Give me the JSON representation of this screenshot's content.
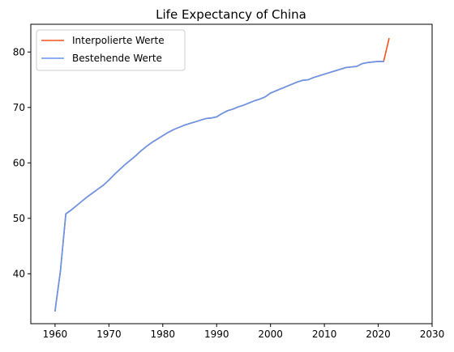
{
  "chart_data": {
    "type": "line",
    "title": "Life Expectancy of China",
    "xlabel": "",
    "ylabel": "",
    "xlim": [
      1955.5,
      2030
    ],
    "ylim": [
      31,
      85
    ],
    "xticks": [
      1960,
      1970,
      1980,
      1990,
      2000,
      2010,
      2020,
      2030
    ],
    "yticks": [
      40,
      50,
      60,
      70,
      80
    ],
    "legend_position": "top-left",
    "grid": false,
    "series": [
      {
        "name": "Interpolierte Werte",
        "color": "#f4511e",
        "x": [
          1960,
          1961,
          1962,
          1963,
          1964,
          1965,
          1966,
          1967,
          1968,
          1969,
          1970,
          1971,
          1972,
          1973,
          1974,
          1975,
          1976,
          1977,
          1978,
          1979,
          1980,
          1981,
          1982,
          1983,
          1984,
          1985,
          1986,
          1987,
          1988,
          1989,
          1990,
          1991,
          1992,
          1993,
          1994,
          1995,
          1996,
          1997,
          1998,
          1999,
          2000,
          2001,
          2002,
          2003,
          2004,
          2005,
          2006,
          2007,
          2008,
          2009,
          2010,
          2011,
          2012,
          2013,
          2014,
          2015,
          2016,
          2017,
          2018,
          2019,
          2020,
          2021,
          2022
        ],
        "y": [
          33.3,
          40.5,
          50.8,
          51.5,
          52.3,
          53.1,
          53.9,
          54.6,
          55.3,
          56.0,
          56.9,
          57.9,
          58.8,
          59.7,
          60.5,
          61.3,
          62.2,
          63.0,
          63.7,
          64.3,
          64.9,
          65.5,
          66.0,
          66.4,
          66.8,
          67.1,
          67.4,
          67.7,
          68.0,
          68.1,
          68.3,
          68.9,
          69.4,
          69.7,
          70.1,
          70.4,
          70.8,
          71.2,
          71.5,
          71.9,
          72.6,
          73.0,
          73.4,
          73.8,
          74.2,
          74.6,
          74.9,
          75.0,
          75.4,
          75.7,
          76.0,
          76.3,
          76.6,
          76.9,
          77.2,
          77.3,
          77.4,
          77.9,
          78.1,
          78.2,
          78.3,
          78.3,
          82.4
        ]
      },
      {
        "name": "Bestehende Werte",
        "color": "#6495ed",
        "x": [
          1960,
          1961,
          1962,
          1963,
          1964,
          1965,
          1966,
          1967,
          1968,
          1969,
          1970,
          1971,
          1972,
          1973,
          1974,
          1975,
          1976,
          1977,
          1978,
          1979,
          1980,
          1981,
          1982,
          1983,
          1984,
          1985,
          1986,
          1987,
          1988,
          1989,
          1990,
          1991,
          1992,
          1993,
          1994,
          1995,
          1996,
          1997,
          1998,
          1999,
          2000,
          2001,
          2002,
          2003,
          2004,
          2005,
          2006,
          2007,
          2008,
          2009,
          2010,
          2011,
          2012,
          2013,
          2014,
          2015,
          2016,
          2017,
          2018,
          2019,
          2020,
          2021
        ],
        "y": [
          33.3,
          40.5,
          50.8,
          51.5,
          52.3,
          53.1,
          53.9,
          54.6,
          55.3,
          56.0,
          56.9,
          57.9,
          58.8,
          59.7,
          60.5,
          61.3,
          62.2,
          63.0,
          63.7,
          64.3,
          64.9,
          65.5,
          66.0,
          66.4,
          66.8,
          67.1,
          67.4,
          67.7,
          68.0,
          68.1,
          68.3,
          68.9,
          69.4,
          69.7,
          70.1,
          70.4,
          70.8,
          71.2,
          71.5,
          71.9,
          72.6,
          73.0,
          73.4,
          73.8,
          74.2,
          74.6,
          74.9,
          75.0,
          75.4,
          75.7,
          76.0,
          76.3,
          76.6,
          76.9,
          77.2,
          77.3,
          77.4,
          77.9,
          78.1,
          78.2,
          78.3,
          78.3
        ]
      }
    ]
  }
}
